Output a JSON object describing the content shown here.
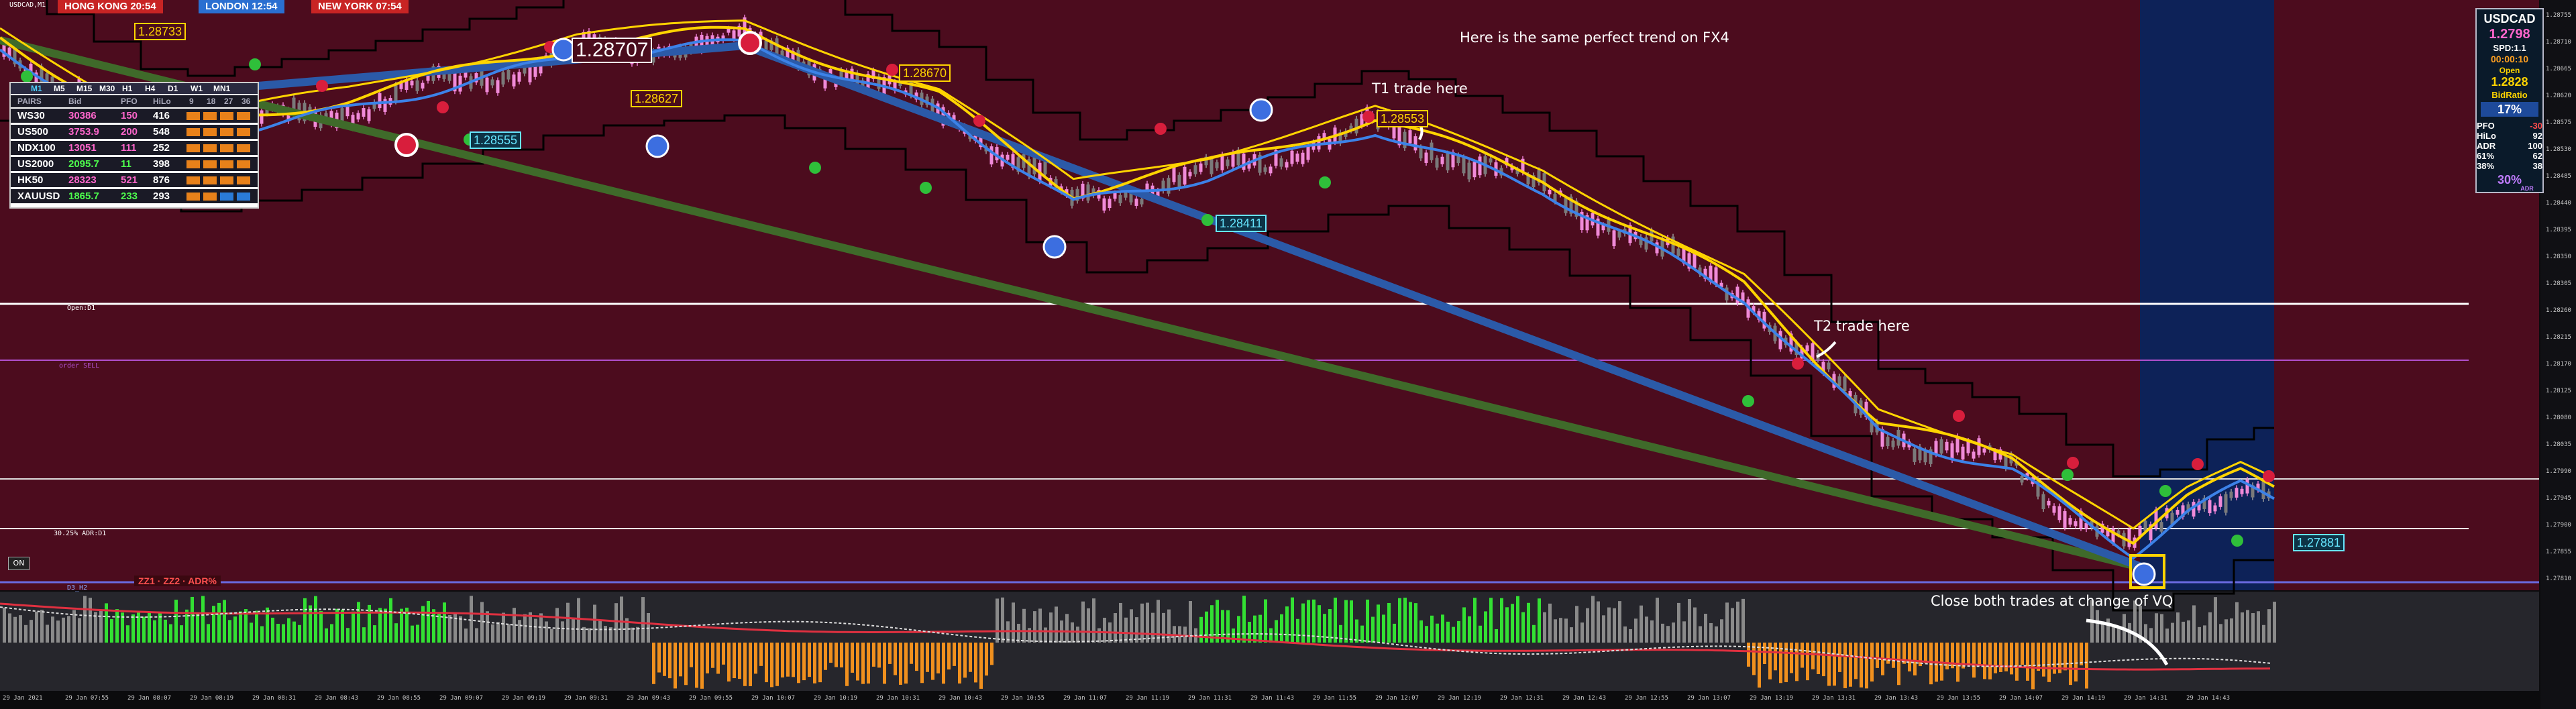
{
  "chart": {
    "symbol_tag": "USDCAD,M1",
    "open_label": "Open:D1",
    "order_label": "order SELL",
    "adr_label": "30.25% ADR:D1",
    "on_button": "ON",
    "zigzag_label": "ZZ1 · ZZ2 · ADR%",
    "mini_label": "D3_H2",
    "sessions": [
      {
        "label": "HONG KONG 20:54",
        "color": "#c82424"
      },
      {
        "label": "LONDON 12:54",
        "color": "#2a6fd1"
      },
      {
        "label": "NEW YORK 07:54",
        "color": "#c82424"
      }
    ],
    "annotations": {
      "title": "Here is the same perfect trend on FX4",
      "t1": "T1 trade here",
      "t2": "T2 trade here",
      "close": "Close both trades at change of VQ"
    },
    "price_labels": [
      "1.28733",
      "1.28707",
      "1.28670",
      "1.28627",
      "1.28555",
      "1.28553",
      "1.28411",
      "1.27881"
    ],
    "colors": {
      "background": "#4c0c1e",
      "now_zone": "#0d2258",
      "yellow_ma": "#ffd400",
      "blue_ma": "#3c82e8",
      "trend_blue": "#2b5aa8",
      "trend_green": "#3f6a2a",
      "sell_dot": "#d81e3c",
      "buy_dot": "#2fbf3a"
    },
    "price_axis": [
      "1.28755",
      "1.28710",
      "1.28665",
      "1.28620",
      "1.28575",
      "1.28530",
      "1.28485",
      "1.28440",
      "1.28395",
      "1.28350",
      "1.28305",
      "1.28260",
      "1.28215",
      "1.28170",
      "1.28125",
      "1.28080",
      "1.28035",
      "1.27990",
      "1.27945",
      "1.27900",
      "1.27855",
      "1.27810"
    ],
    "time_axis": [
      "29 Jan 2021",
      "29 Jan 07:55",
      "29 Jan 08:07",
      "29 Jan 08:19",
      "29 Jan 08:31",
      "29 Jan 08:43",
      "29 Jan 08:55",
      "29 Jan 09:07",
      "29 Jan 09:19",
      "29 Jan 09:31",
      "29 Jan 09:43",
      "29 Jan 09:55",
      "29 Jan 10:07",
      "29 Jan 10:19",
      "29 Jan 10:31",
      "29 Jan 10:43",
      "29 Jan 10:55",
      "29 Jan 11:07",
      "29 Jan 11:19",
      "29 Jan 11:31",
      "29 Jan 11:43",
      "29 Jan 11:55",
      "29 Jan 12:07",
      "29 Jan 12:19",
      "29 Jan 12:31",
      "29 Jan 12:43",
      "29 Jan 12:55",
      "29 Jan 13:07",
      "29 Jan 13:19",
      "29 Jan 13:31",
      "29 Jan 13:43",
      "29 Jan 13:55",
      "29 Jan 14:07",
      "29 Jan 14:19",
      "29 Jan 14:31",
      "29 Jan 14:43"
    ]
  },
  "table": {
    "timeframes": [
      "M1",
      "M5",
      "M15",
      "M30",
      "H1",
      "H4",
      "D1",
      "W1",
      "MN1"
    ],
    "columns": [
      "PAIRS",
      "Bid",
      "PFO",
      "HiLo",
      "9",
      "18",
      "27",
      "36"
    ],
    "rows": [
      {
        "pair": "WS30",
        "bid": "30386",
        "pfo": "150",
        "hilo": "416",
        "bid_color": "#ff66cc",
        "pfo_color": "#ff66cc"
      },
      {
        "pair": "US500",
        "bid": "3753.9",
        "pfo": "200",
        "hilo": "548",
        "bid_color": "#ff66cc",
        "pfo_color": "#ff66cc"
      },
      {
        "pair": "NDX100",
        "bid": "13051",
        "pfo": "111",
        "hilo": "252",
        "bid_color": "#ff66cc",
        "pfo_color": "#ff66cc"
      },
      {
        "pair": "US2000",
        "bid": "2095.7",
        "pfo": "11",
        "hilo": "398",
        "bid_color": "#4dff4d",
        "pfo_color": "#4dff4d"
      },
      {
        "pair": "HK50",
        "bid": "28323",
        "pfo": "521",
        "hilo": "876",
        "bid_color": "#ff66cc",
        "pfo_color": "#ff66cc"
      },
      {
        "pair": "XAUUSD",
        "bid": "1865.7",
        "pfo": "233",
        "hilo": "293",
        "bid_color": "#4dff4d",
        "pfo_color": "#4dff4d"
      }
    ]
  },
  "info": {
    "symbol": "USDCAD",
    "price": "1.2798",
    "spread": "SPD:1.1",
    "timer": "00:00:10",
    "open_label": "Open",
    "open_price": "1.2828",
    "bid_ratio_label": "BidRatio",
    "bid_ratio": "17%",
    "stats": [
      {
        "k": "PFO",
        "v": "-30",
        "c": "#ff4d4d"
      },
      {
        "k": "HiLo",
        "v": "92",
        "c": "#ffffff"
      },
      {
        "k": "ADR",
        "v": "100",
        "c": "#ffffff"
      },
      {
        "k": "61%",
        "v": "62",
        "c": "#ffffff"
      },
      {
        "k": "38%",
        "v": "38",
        "c": "#ffffff"
      }
    ],
    "adr_pct": "30%",
    "adr_pct_label": "ADR"
  }
}
